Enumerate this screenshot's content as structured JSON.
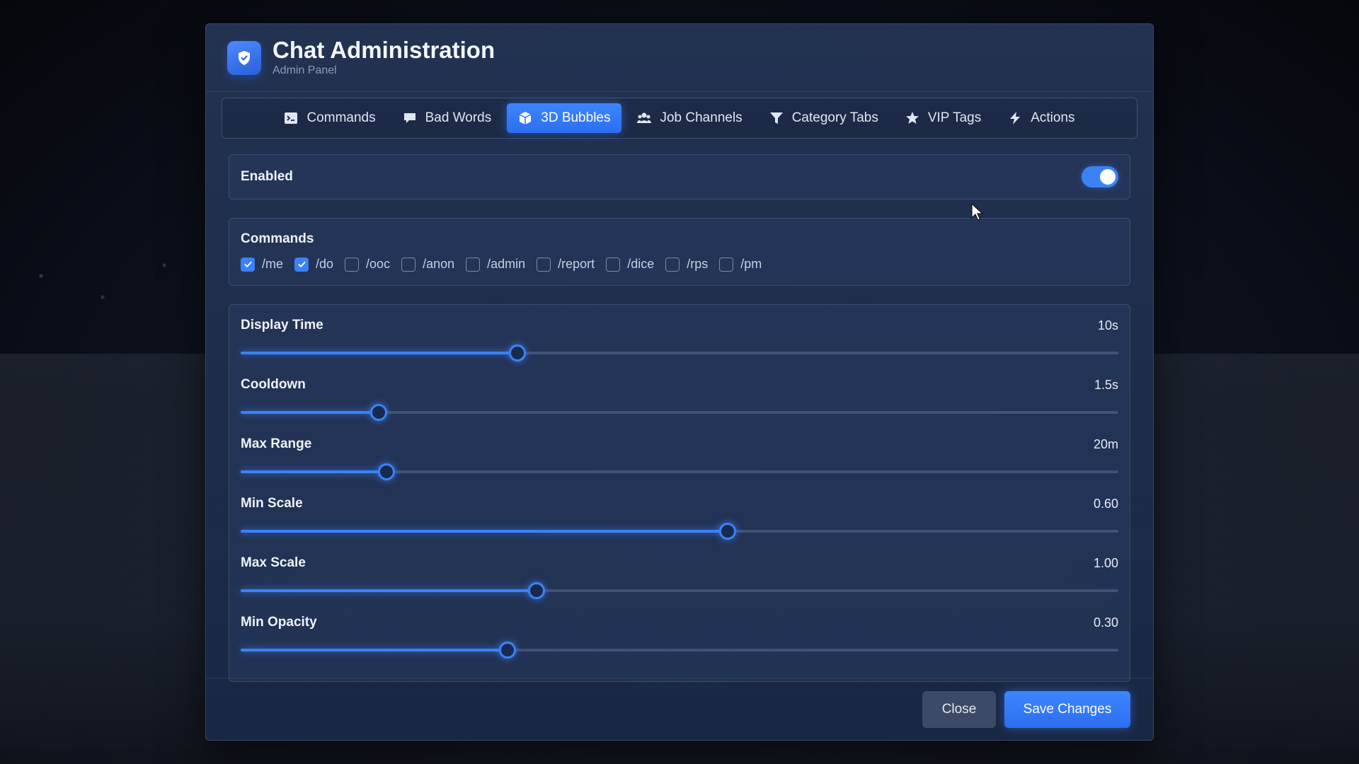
{
  "header": {
    "title": "Chat Administration",
    "subtitle": "Admin Panel"
  },
  "tabs": [
    {
      "label": "Commands",
      "icon": "terminal-icon",
      "active": false
    },
    {
      "label": "Bad Words",
      "icon": "comment-icon",
      "active": false
    },
    {
      "label": "3D Bubbles",
      "icon": "cube-icon",
      "active": true
    },
    {
      "label": "Job Channels",
      "icon": "users-icon",
      "active": false
    },
    {
      "label": "Category Tabs",
      "icon": "filter-icon",
      "active": false
    },
    {
      "label": "VIP Tags",
      "icon": "star-icon",
      "active": false
    },
    {
      "label": "Actions",
      "icon": "bolt-icon",
      "active": false
    }
  ],
  "enabled": {
    "label": "Enabled",
    "value": true
  },
  "commands": {
    "title": "Commands",
    "items": [
      {
        "label": "/me",
        "checked": true
      },
      {
        "label": "/do",
        "checked": true
      },
      {
        "label": "/ooc",
        "checked": false
      },
      {
        "label": "/anon",
        "checked": false
      },
      {
        "label": "/admin",
        "checked": false
      },
      {
        "label": "/report",
        "checked": false
      },
      {
        "label": "/dice",
        "checked": false
      },
      {
        "label": "/rps",
        "checked": false
      },
      {
        "label": "/pm",
        "checked": false
      }
    ]
  },
  "sliders": [
    {
      "label": "Display Time",
      "value": "10s",
      "fraction": 0.315
    },
    {
      "label": "Cooldown",
      "value": "1.5s",
      "fraction": 0.157
    },
    {
      "label": "Max Range",
      "value": "20m",
      "fraction": 0.166
    },
    {
      "label": "Min Scale",
      "value": "0.60",
      "fraction": 0.555
    },
    {
      "label": "Max Scale",
      "value": "1.00",
      "fraction": 0.337
    },
    {
      "label": "Min Opacity",
      "value": "0.30",
      "fraction": 0.304
    }
  ],
  "footer": {
    "close_label": "Close",
    "save_label": "Save Changes"
  },
  "colors": {
    "accent": "#3b82f6",
    "panel": "#22345a"
  }
}
